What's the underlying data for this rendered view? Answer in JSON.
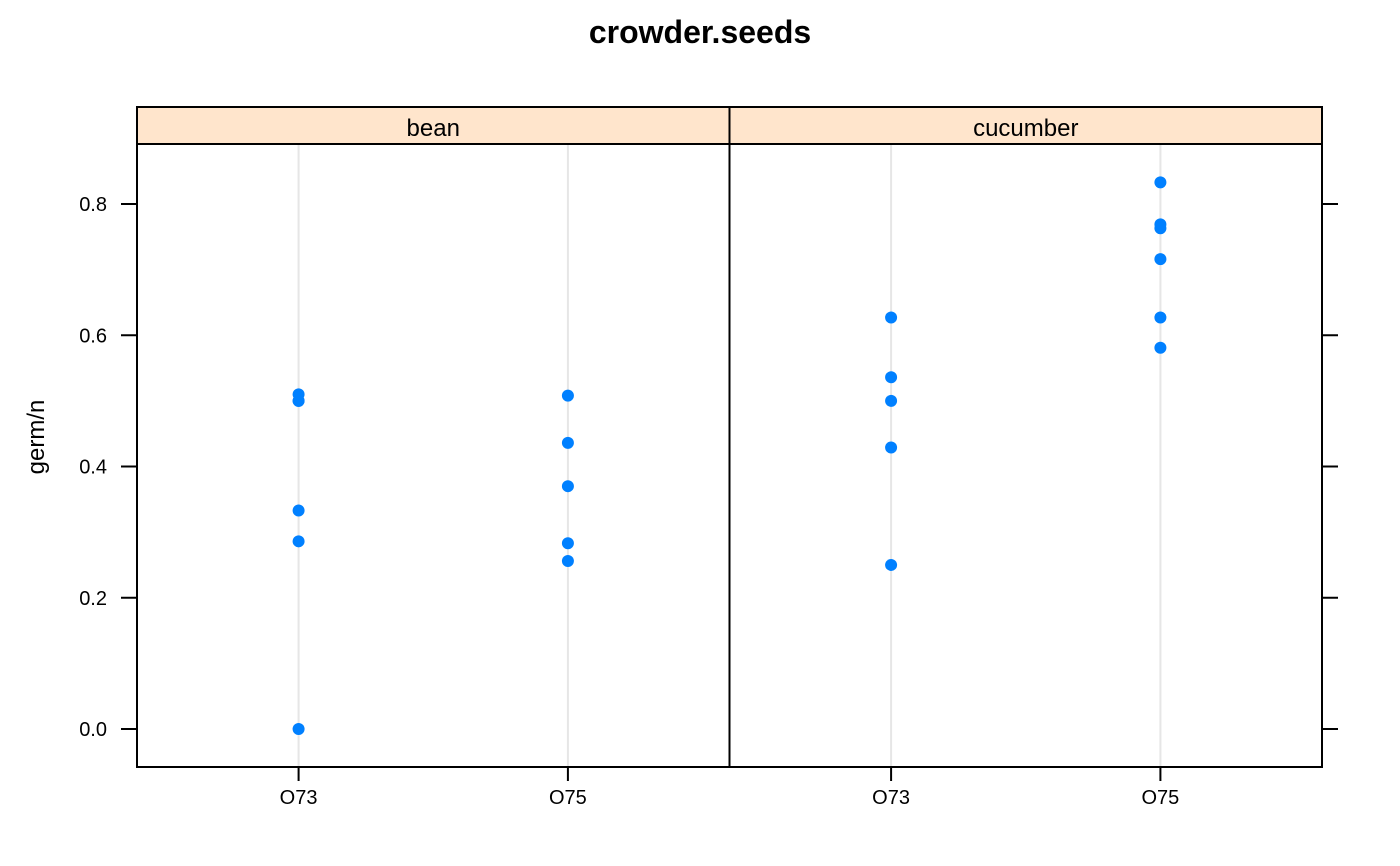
{
  "chart_data": {
    "type": "scatter",
    "title": "crowder.seeds",
    "xlabel": "",
    "ylabel": "germ/n",
    "categories": [
      "O73",
      "O75"
    ],
    "ylim": [
      -0.056,
      0.89
    ],
    "yticks": [
      "0.0",
      "0.2",
      "0.4",
      "0.6",
      "0.8"
    ],
    "grid": "vertical reference lines at categories",
    "colors": {
      "point": "#0080ff",
      "strip_bg": "#ffe5cc",
      "gridline": "#e6e6e6",
      "axis": "#000000"
    },
    "panels": [
      {
        "name": "bean",
        "series": [
          {
            "x": "O73",
            "values": [
              0.51,
              0.5,
              0.5,
              0.333,
              0.286,
              0.0
            ]
          },
          {
            "x": "O75",
            "values": [
              0.508,
              0.436,
              0.37,
              0.283,
              0.256
            ]
          }
        ]
      },
      {
        "name": "cucumber",
        "series": [
          {
            "x": "O73",
            "values": [
              0.627,
              0.536,
              0.5,
              0.429,
              0.25
            ]
          },
          {
            "x": "O75",
            "values": [
              0.833,
              0.769,
              0.763,
              0.716,
              0.627,
              0.581
            ]
          }
        ]
      }
    ]
  }
}
